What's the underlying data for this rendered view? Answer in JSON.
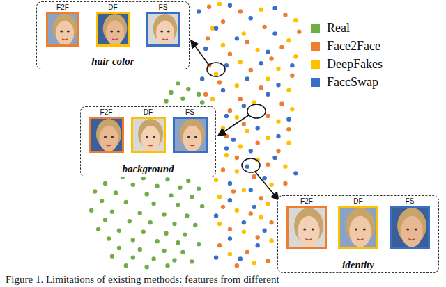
{
  "chart_data": {
    "type": "scatter",
    "caption": "Figure 1. Limitations of existing methods: features from different",
    "xlim": [
      0,
      640
    ],
    "ylim": [
      0,
      400
    ],
    "tick_labels": false,
    "grid": false,
    "legend": "upper right",
    "series": [
      {
        "name": "Real",
        "color": "#70ad47",
        "marker": "circle",
        "x": [
          255,
          270,
          245,
          285,
          262,
          238,
          290,
          175,
          205,
          240,
          270,
          150,
          190,
          225,
          258,
          285,
          135,
          165,
          210,
          245,
          275,
          145,
          180,
          220,
          255,
          290,
          130,
          160,
          200,
          235,
          268,
          150,
          185,
          215,
          250,
          280,
          140,
          170,
          205,
          238,
          265,
          155,
          190,
          225,
          255,
          285,
          170,
          200,
          235,
          262,
          160,
          190,
          220,
          250,
          275,
          180,
          210,
          240
        ],
        "values": [
          278,
          270,
          265,
          262,
          256,
          252,
          250,
          140,
          138,
          136,
          134,
          130,
          128,
          126,
          124,
          122,
          118,
          116,
          114,
          112,
          110,
          104,
          102,
          100,
          98,
          96,
          90,
          88,
          86,
          84,
          82,
          76,
          74,
          72,
          70,
          68,
          62,
          60,
          58,
          56,
          54,
          48,
          46,
          44,
          42,
          40,
          34,
          32,
          30,
          28,
          22,
          20,
          18,
          16,
          14,
          8,
          6,
          8
        ]
      },
      {
        "name": "Face2Face",
        "color": "#ed7d31",
        "marker": "circle",
        "x": [
          300,
          345,
          410,
          320,
          380,
          430,
          298,
          355,
          405,
          330,
          390,
          300,
          360,
          420,
          315,
          375,
          295,
          345,
          405,
          330,
          385,
          350,
          415,
          325,
          370,
          400,
          340,
          385,
          320,
          365,
          410,
          335,
          375,
          320,
          360,
          390,
          330,
          370,
          315,
          355,
          385,
          340
        ],
        "values": [
          392,
          385,
          380,
          370,
          362,
          355,
          345,
          340,
          332,
          322,
          315,
          305,
          298,
          290,
          280,
          272,
          262,
          255,
          248,
          238,
          230,
          218,
          210,
          200,
          190,
          178,
          168,
          158,
          150,
          140,
          130,
          118,
          108,
          95,
          85,
          72,
          62,
          50,
          38,
          28,
          15,
          8
        ]
      },
      {
        "name": "DeepFakes",
        "color": "#ffc000",
        "marker": "circle",
        "x": [
          315,
          375,
          425,
          305,
          350,
          415,
          320,
          370,
          425,
          345,
          400,
          310,
          385,
          340,
          415,
          305,
          365,
          420,
          340,
          400,
          355,
          320,
          385,
          345,
          415,
          325,
          370,
          410,
          340,
          310,
          390,
          350,
          315,
          385,
          340,
          375,
          315,
          350,
          390,
          330,
          365
        ],
        "values": [
          396,
          388,
          372,
          360,
          352,
          342,
          335,
          328,
          318,
          310,
          300,
          292,
          285,
          275,
          268,
          255,
          250,
          240,
          228,
          222,
          208,
          212,
          198,
          185,
          190,
          172,
          165,
          155,
          148,
          135,
          128,
          120,
          110,
          100,
          90,
          80,
          70,
          58,
          45,
          25,
          12
        ]
      },
      {
        "name": "FaccSwap",
        "color": "#3b6fc6",
        "marker": "circle",
        "x": [
          285,
          330,
          395,
          360,
          310,
          395,
          340,
          295,
          385,
          420,
          325,
          375,
          290,
          355,
          400,
          320,
          385,
          350,
          325,
          415,
          370,
          335,
          400,
          360,
          325,
          395,
          355,
          425,
          330,
          380,
          360,
          395,
          330,
          365,
          310,
          350,
          380,
          330,
          370,
          345,
          310
        ],
        "values": [
          385,
          394,
          390,
          375,
          360,
          352,
          345,
          330,
          325,
          305,
          305,
          308,
          285,
          285,
          276,
          268,
          262,
          245,
          230,
          225,
          212,
          195,
          200,
          178,
          182,
          168,
          155,
          145,
          130,
          138,
          120,
          112,
          105,
          95,
          82,
          72,
          60,
          48,
          38,
          18,
          20
        ]
      }
    ],
    "annotations": [
      {
        "text": "hair color",
        "labels": [
          "F2F",
          "DF",
          "FS"
        ]
      },
      {
        "text": "background",
        "labels": [
          "F2F",
          "DF",
          "FS"
        ]
      },
      {
        "text": "identity",
        "labels": [
          "F2F",
          "DF",
          "FS"
        ]
      }
    ]
  }
}
